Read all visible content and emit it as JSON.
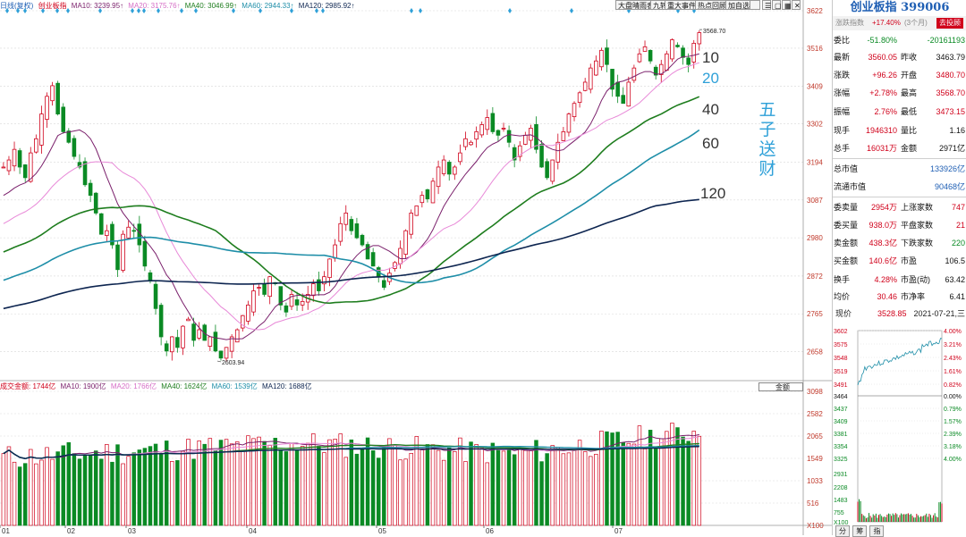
{
  "toolbar": {
    "buttons": [
      "大盘晴雨表",
      "九转",
      "重大事件",
      "热点回顾",
      "加自选",
      ""
    ]
  },
  "legend": {
    "index_label": "日线(复权)",
    "index_name": "创业板指",
    "ma10": "MA10: 3239.95↑",
    "ma20": "MA20: 3175.76↑",
    "ma40": "MA40: 3046.99↑",
    "ma60": "MA60: 2944.33↑",
    "ma120": "MA120: 2985.92↑"
  },
  "price_axis": [
    "3622",
    "3516",
    "3409",
    "3302",
    "3194",
    "3087",
    "2980",
    "2872",
    "2765",
    "2658"
  ],
  "volume_axis": [
    "3098",
    "2582",
    "2065",
    "1549",
    "1033",
    "516",
    "X100"
  ],
  "month_labels": [
    "01",
    "02",
    "03",
    "04",
    "05",
    "06",
    "07"
  ],
  "annotations": {
    "high": "3568.70",
    "low": "2603.94",
    "ma_labels": [
      "10",
      "20",
      "40",
      "60",
      "120"
    ],
    "overlay_text": [
      "五",
      "子",
      "送",
      "财"
    ]
  },
  "volume_legend": {
    "title": "成交金额: 1744亿",
    "ma10": "MA10: 1900亿",
    "ma20": "MA20: 1766亿",
    "ma40": "MA40: 1624亿",
    "ma60": "MA60: 1539亿",
    "ma120": "MA120: 1688亿",
    "select": "金额"
  },
  "colors": {
    "up": "#d0021b",
    "down": "#0a8a24",
    "ma10": "#7a1f6b",
    "ma20": "#e889d8",
    "ma40": "#1e7d1e",
    "ma60": "#1e8ea8",
    "ma120": "#0d2550",
    "overlay": "#2ea0d8"
  },
  "side": {
    "title": "创业板指 399006",
    "sub_left": "涨跌指数",
    "sub_mid": "+17.40%",
    "sub_mid2": "(3个月)",
    "sub_btn": "去投顾",
    "rows": [
      {
        "l": "委比",
        "v1": "-51.80%",
        "l2": "",
        "v2": "-20161193"
      },
      {
        "l": "最新",
        "v1": "3560.05",
        "l2": "昨收",
        "v2": "3463.79"
      },
      {
        "l": "涨跌",
        "v1": "+96.26",
        "l2": "开盘",
        "v2": "3480.70"
      },
      {
        "l": "涨幅",
        "v1": "+2.78%",
        "l2": "最高",
        "v2": "3568.70"
      },
      {
        "l": "振幅",
        "v1": "2.76%",
        "l2": "最低",
        "v2": "3473.15"
      },
      {
        "l": "现手",
        "v1": "1946310",
        "l2": "量比",
        "v2": "1.16"
      },
      {
        "l": "总手",
        "v1": "16031万",
        "l2": "金额",
        "v2": "2971亿"
      },
      {
        "l": "总市值",
        "v1": "",
        "l2": "",
        "v2": "133926亿"
      },
      {
        "l": "流通市值",
        "v1": "",
        "l2": "",
        "v2": "90468亿"
      },
      {
        "l": "委卖量",
        "v1": "2954万",
        "l2": "上涨家数",
        "v2": "747"
      },
      {
        "l": "委买量",
        "v1": "938.0万",
        "l2": "平盘家数",
        "v2": "21"
      },
      {
        "l": "卖金额",
        "v1": "438.3亿",
        "l2": "下跌家数",
        "v2": "220"
      },
      {
        "l": "买金额",
        "v1": "140.6亿",
        "l2": "市盈",
        "v2": "106.5"
      },
      {
        "l": "换手",
        "v1": "4.28%",
        "l2": "市盈(动)",
        "v2": "63.42"
      },
      {
        "l": "均价",
        "v1": "30.46",
        "l2": "市净率",
        "v2": "6.41"
      }
    ],
    "now_label": "现价",
    "now_value": "3528.85",
    "date": "2021-07-21,三"
  },
  "mini": {
    "left_axis": [
      "3602",
      "3575",
      "3548",
      "3519",
      "3491",
      "3464",
      "3437",
      "3409",
      "3381",
      "3354",
      "3325",
      "2931",
      "2208",
      "1483",
      "755",
      "X100"
    ],
    "right_axis": [
      "4.00%",
      "3.21%",
      "2.43%",
      "1.61%",
      "0.82%",
      "0.00%",
      "0.79%",
      "1.57%",
      "2.39%",
      "3.18%",
      "4.00%"
    ],
    "tabs": [
      "分",
      "筹",
      "指"
    ]
  },
  "chart_data": {
    "type": "candlestick",
    "x": [
      "01",
      "02",
      "03",
      "04",
      "05",
      "06",
      "07"
    ],
    "ylim": [
      2603.94,
      3622
    ],
    "high": 3568.7,
    "low": 2603.94,
    "moving_averages": [
      {
        "name": "MA10",
        "value": 3239.95
      },
      {
        "name": "MA20",
        "value": 3175.76
      },
      {
        "name": "MA40",
        "value": 3046.99
      },
      {
        "name": "MA60",
        "value": 2944.33
      },
      {
        "name": "MA120",
        "value": 2985.92
      }
    ],
    "volume": {
      "unit": "亿",
      "latest": 1744,
      "ylim": [
        0,
        3098
      ],
      "moving_averages": [
        {
          "name": "MA10",
          "value": 1900
        },
        {
          "name": "MA20",
          "value": 1766
        },
        {
          "name": "MA40",
          "value": 1624
        },
        {
          "name": "MA60",
          "value": 1539
        },
        {
          "name": "MA120",
          "value": 1688
        }
      ]
    },
    "price_path": [
      3180,
      3200,
      3230,
      3180,
      3150,
      3220,
      3260,
      3330,
      3380,
      3410,
      3330,
      3280,
      3250,
      3210,
      3180,
      3130,
      3100,
      3050,
      2990,
      3000,
      2960,
      2890,
      2990,
      3010,
      3000,
      2960,
      2900,
      2860,
      2780,
      2700,
      2660,
      2700,
      2670,
      2730,
      2750,
      2690,
      2720,
      2690,
      2700,
      2660,
      2640,
      2670,
      2700,
      2720,
      2760,
      2790,
      2830,
      2840,
      2820,
      2870,
      2850,
      2790,
      2770,
      2820,
      2790,
      2800,
      2820,
      2850,
      2830,
      2870,
      2920,
      2960,
      3020,
      3050,
      3000,
      2980,
      2960,
      2920,
      2900,
      2870,
      2840,
      2880,
      2910,
      2950,
      3000,
      3050,
      3070,
      3100,
      3090,
      3140,
      3180,
      3200,
      3160,
      3180,
      3220,
      3260,
      3250,
      3280,
      3300,
      3320,
      3280,
      3270,
      3290,
      3250,
      3200,
      3240,
      3270,
      3290,
      3230,
      3180,
      3150,
      3200,
      3250,
      3280,
      3330,
      3360,
      3390,
      3420,
      3460,
      3480,
      3510,
      3470,
      3400,
      3380,
      3360,
      3420,
      3460,
      3500,
      3520,
      3480,
      3440,
      3470,
      3500,
      3540,
      3520,
      3490,
      3470,
      3530,
      3560
    ]
  }
}
